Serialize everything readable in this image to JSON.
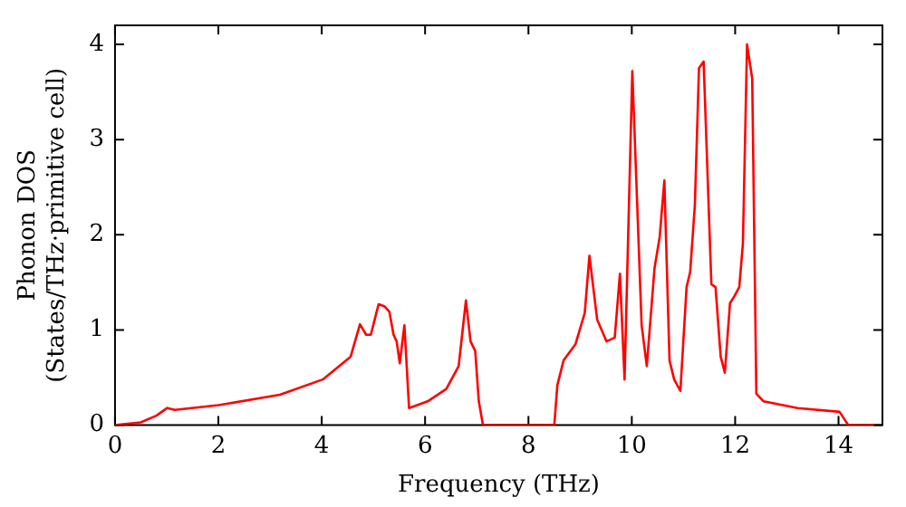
{
  "chart_data": {
    "type": "line",
    "xlabel": "Frequency (THz)",
    "ylabel": "Phonon DOS\n(States/THz·primitive cell)",
    "xlim": [
      0,
      14.85
    ],
    "ylim": [
      0,
      4.2
    ],
    "xticks": [
      0,
      2,
      4,
      6,
      8,
      10,
      12,
      14
    ],
    "yticks": [
      0,
      1,
      2,
      3,
      4
    ],
    "grid": false,
    "legend": false,
    "marker": "none",
    "line_style": "solid",
    "series": [
      {
        "color": "#ff0000",
        "x": [
          0,
          0.5,
          0.8,
          1.01,
          1.16,
          2.0,
          3.19,
          4.02,
          4.56,
          4.74,
          4.86,
          4.95,
          5.1,
          5.21,
          5.31,
          5.39,
          5.45,
          5.51,
          5.6,
          5.69,
          6.05,
          6.41,
          6.65,
          6.79,
          6.88,
          6.97,
          7.04,
          7.12,
          8.5,
          8.56,
          8.68,
          8.91,
          9.09,
          9.18,
          9.33,
          9.51,
          9.67,
          9.77,
          9.86,
          10.01,
          10.19,
          10.29,
          10.44,
          10.54,
          10.63,
          10.73,
          10.82,
          10.94,
          11.06,
          11.13,
          11.22,
          11.3,
          11.39,
          11.54,
          11.62,
          11.72,
          11.8,
          11.9,
          11.98,
          12.08,
          12.15,
          12.23,
          12.33,
          12.41,
          12.55,
          13.21,
          14.02,
          14.19,
          14.7
        ],
        "values": [
          0,
          0.03,
          0.1,
          0.18,
          0.16,
          0.21,
          0.32,
          0.48,
          0.72,
          1.06,
          0.95,
          0.95,
          1.27,
          1.25,
          1.19,
          0.95,
          0.88,
          0.65,
          1.05,
          0.18,
          0.25,
          0.38,
          0.62,
          1.31,
          0.88,
          0.78,
          0.25,
          0,
          0,
          0.42,
          0.68,
          0.85,
          1.18,
          1.78,
          1.11,
          0.88,
          0.92,
          1.59,
          0.48,
          3.72,
          1.05,
          0.62,
          1.65,
          1.98,
          2.57,
          0.68,
          0.48,
          0.36,
          1.45,
          1.61,
          2.31,
          3.75,
          3.82,
          1.48,
          1.45,
          0.72,
          0.55,
          1.28,
          1.35,
          1.45,
          1.91,
          4.0,
          3.64,
          0.33,
          0.25,
          0.18,
          0.14,
          0,
          0
        ]
      }
    ]
  }
}
